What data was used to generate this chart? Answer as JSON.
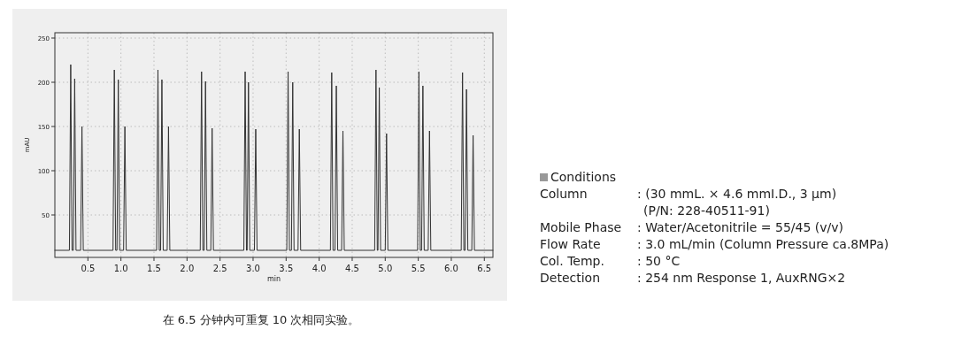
{
  "chart_data": {
    "type": "line",
    "xlabel": "min",
    "ylabel": "mAU",
    "xlim": [
      0,
      6.63
    ],
    "ylim": [
      2,
      256
    ],
    "xticks": [
      {
        "value": 0.5,
        "label": "0.5"
      },
      {
        "value": 1,
        "label": "1.0"
      },
      {
        "value": 1.5,
        "label": "1.5"
      },
      {
        "value": 2,
        "label": "2.0"
      },
      {
        "value": 2.5,
        "label": "2.5"
      },
      {
        "value": 3,
        "label": "3.0"
      },
      {
        "value": 3.5,
        "label": "3.5"
      },
      {
        "value": 4,
        "label": "4.0"
      },
      {
        "value": 4.5,
        "label": "4.5"
      },
      {
        "value": 5,
        "label": "5.0"
      },
      {
        "value": 5.5,
        "label": "5.5"
      },
      {
        "value": 6,
        "label": "6.0"
      },
      {
        "value": 6.5,
        "label": "6.5"
      }
    ],
    "yticks": [
      50,
      100,
      150,
      200,
      250
    ],
    "grid": true,
    "x": [
      0,
      0.22,
      0.24,
      0.26,
      0.28,
      0.3,
      0.32,
      0.39,
      0.41,
      0.43,
      0.88,
      0.9,
      0.92,
      0.94,
      0.96,
      0.98,
      1.04,
      1.06,
      1.08,
      1.54,
      1.56,
      1.58,
      1.6,
      1.62,
      1.64,
      1.7,
      1.72,
      1.74,
      2.2,
      2.22,
      2.24,
      2.26,
      2.28,
      2.3,
      2.36,
      2.38,
      2.4,
      2.86,
      2.88,
      2.9,
      2.91,
      2.93,
      2.95,
      3.02,
      3.04,
      3.06,
      3.51,
      3.53,
      3.55,
      3.58,
      3.6,
      3.62,
      3.68,
      3.7,
      3.72,
      4.17,
      4.19,
      4.21,
      4.24,
      4.26,
      4.28,
      4.34,
      4.36,
      4.38,
      4.84,
      4.86,
      4.88,
      4.89,
      4.91,
      4.93,
      5.0,
      5.02,
      5.04,
      5.49,
      5.51,
      5.53,
      5.55,
      5.57,
      5.59,
      5.65,
      5.67,
      5.69,
      6.15,
      6.17,
      6.19,
      6.21,
      6.23,
      6.25,
      6.31,
      6.33,
      6.35,
      6.63
    ],
    "series": [
      {
        "color": "#333333",
        "values": [
          10,
          10,
          220,
          10,
          10,
          204,
          10,
          10,
          150,
          10,
          10,
          214,
          10,
          10,
          203,
          10,
          10,
          150,
          10,
          10,
          214,
          10,
          10,
          203,
          10,
          10,
          150,
          10,
          10,
          212,
          10,
          10,
          201,
          10,
          10,
          148,
          10,
          10,
          212,
          10,
          10,
          200,
          10,
          10,
          147,
          10,
          10,
          212,
          10,
          10,
          200,
          10,
          10,
          147,
          10,
          10,
          211,
          10,
          10,
          196,
          10,
          10,
          145,
          10,
          10,
          214,
          10,
          10,
          194,
          10,
          10,
          142,
          10,
          10,
          212,
          10,
          10,
          196,
          10,
          10,
          145,
          10,
          10,
          211,
          10,
          10,
          192,
          10,
          10,
          140,
          10,
          10
        ]
      }
    ],
    "annotations": [
      "Conditions",
      "Column\t: (30 mmL. × 4.6 mmI.D., 3 µm)\n(P/N: 228-40511-91)",
      "Mobile Phase\t: Water/Acetonitrile = 55/45 (v/v)",
      "Flow Rate\t: 3.0 mL/min (Column Pressure ca.8MPa)",
      "Col. Temp.\t: 50 °C",
      "Detection\t: 254 nm Response 1, AuxRNG×2",
      "在 6.5 分钟内可重复 10 次相同实验。"
    ]
  }
}
